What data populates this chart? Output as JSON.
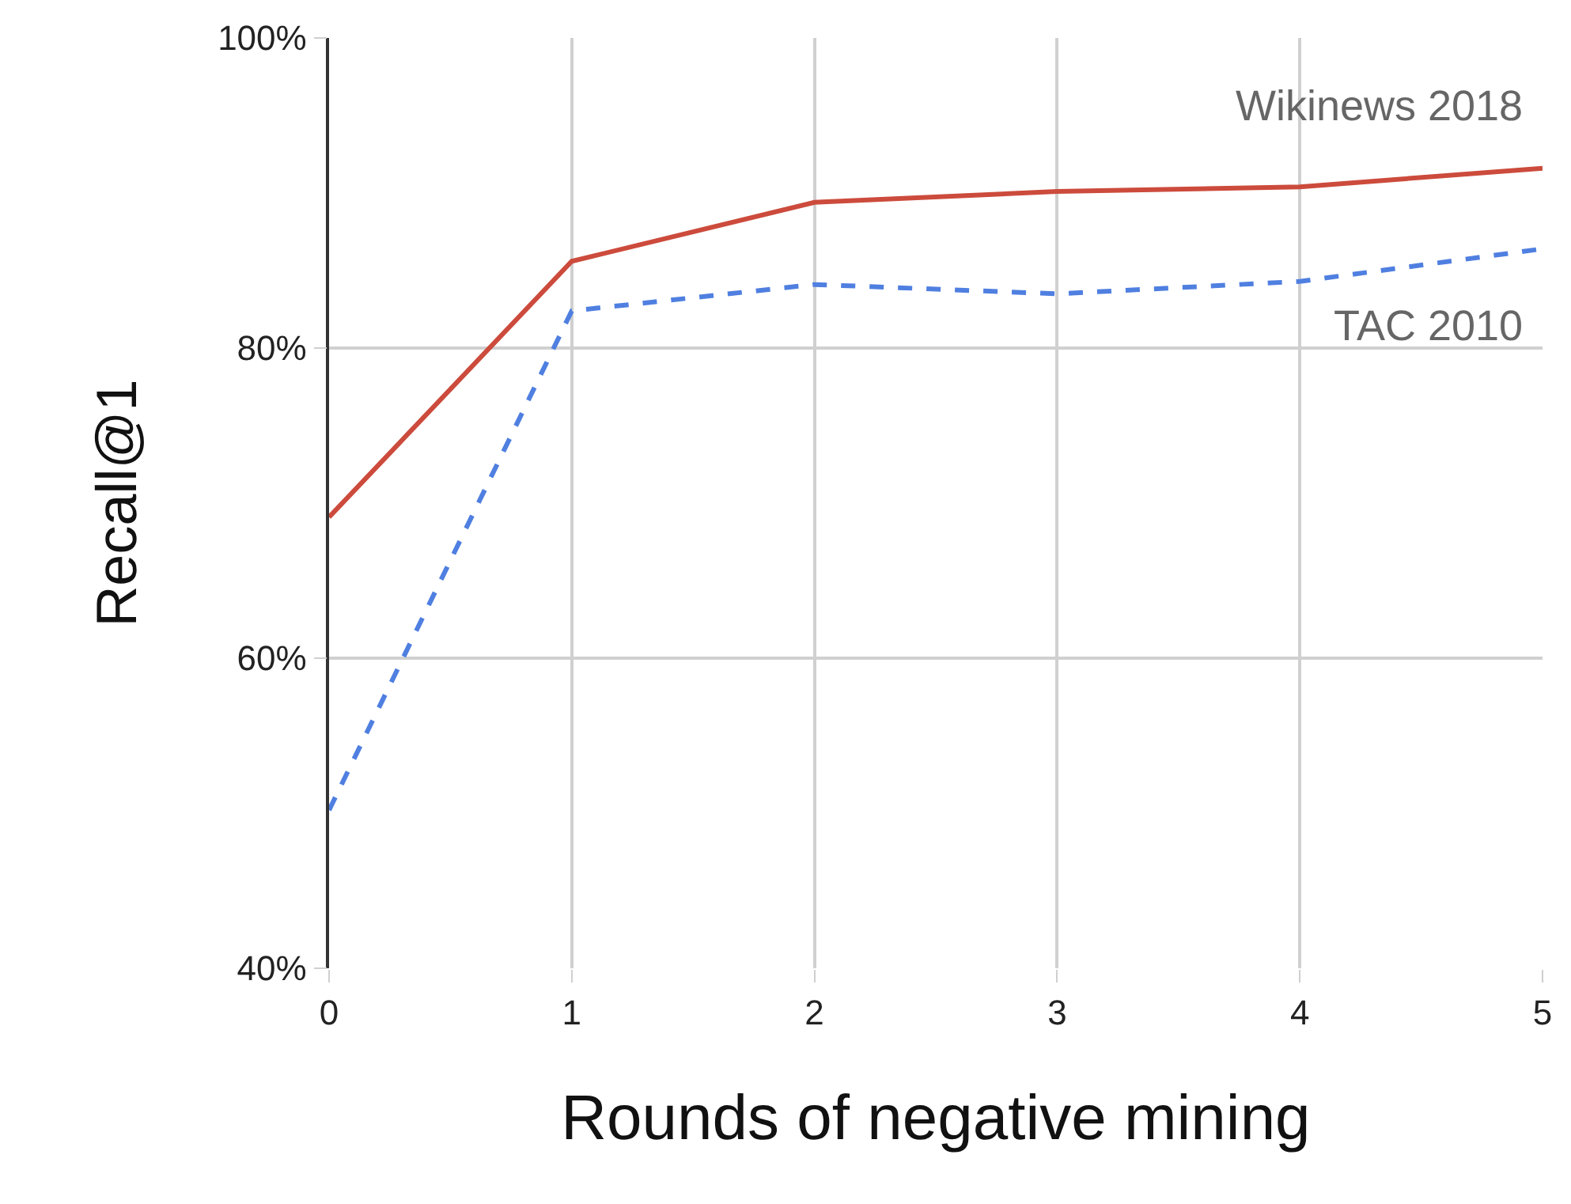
{
  "chart_data": {
    "type": "line",
    "xlabel": "Rounds of negative mining",
    "ylabel": "Recall@1",
    "x": [
      0,
      1,
      2,
      3,
      4,
      5
    ],
    "series": [
      {
        "name": "Wikinews 2018",
        "color": "#cc4b3c",
        "line_style": "solid",
        "values": [
          69.1,
          85.6,
          89.4,
          90.1,
          90.4,
          91.6
        ]
      },
      {
        "name": "TAC 2010",
        "color": "#4f7fe0",
        "line_style": "dashed",
        "values": [
          50.2,
          82.4,
          84.1,
          83.5,
          84.3,
          86.4
        ]
      }
    ],
    "xlim": [
      0,
      5
    ],
    "xticks": [
      0,
      1,
      2,
      3,
      4,
      5
    ],
    "ylim": [
      40,
      100
    ],
    "yticks": [
      {
        "value": 40,
        "label": "40%"
      },
      {
        "value": 60,
        "label": "60%"
      },
      {
        "value": 80,
        "label": "80%"
      },
      {
        "value": 100,
        "label": "100%"
      }
    ],
    "grid": true,
    "legend": false,
    "marker": "none"
  }
}
